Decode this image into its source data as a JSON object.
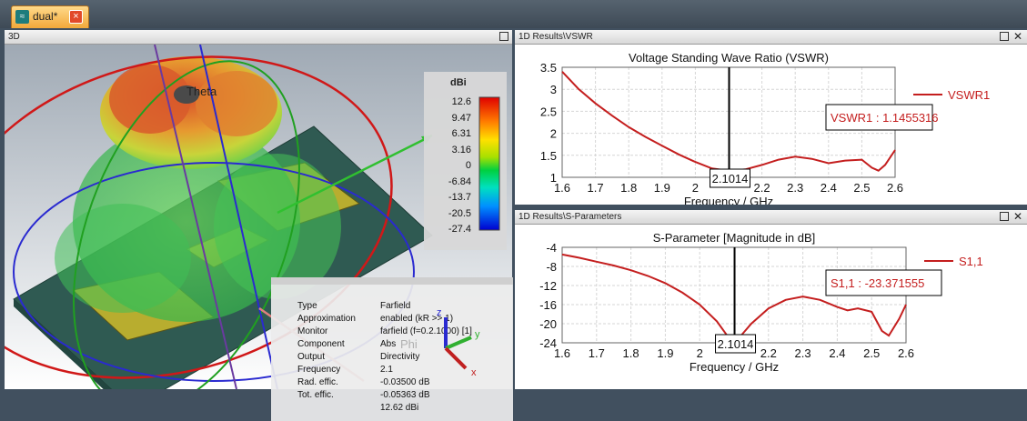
{
  "app": {
    "tab": {
      "title": "dual*",
      "icon": "waves-icon"
    }
  },
  "panel3d": {
    "title": "3D",
    "theta_label": "Theta",
    "phi_label": "Phi",
    "axes": {
      "x": "x",
      "y": "y",
      "z": "z"
    },
    "scale": {
      "unit": "dBi",
      "ticks": [
        "12.6",
        "9.47",
        "6.31",
        "3.16",
        "0",
        "-6.84",
        "-13.7",
        "-20.5",
        "-27.4"
      ]
    },
    "properties": [
      {
        "key": "Type",
        "value": "Farfield"
      },
      {
        "key": "Approximation",
        "value": "enabled (kR >> 1)"
      },
      {
        "key": "Monitor",
        "value": "farfield (f=0.2.1000) [1]"
      },
      {
        "key": "Component",
        "value": "Abs"
      },
      {
        "key": "Output",
        "value": "Directivity"
      },
      {
        "key": "Frequency",
        "value": "2.1"
      },
      {
        "key": "Rad. effic.",
        "value": "-0.03500 dB"
      },
      {
        "key": "Tot. effic.",
        "value": "-0.05363 dB"
      },
      {
        "key": "",
        "value": "12.62 dBi"
      }
    ]
  },
  "vswr_panel": {
    "title": "1D Results\\VSWR"
  },
  "sparam_panel": {
    "title": "1D Results\\S-Parameters"
  },
  "chart_data": [
    {
      "type": "line",
      "title": "Voltage Standing Wave Ratio (VSWR)",
      "xlabel": "Frequency / GHz",
      "ylabel": "",
      "xlim": [
        1.6,
        2.6
      ],
      "ylim": [
        1,
        3.5
      ],
      "x_ticks": [
        "1.6",
        "1.7",
        "1.8",
        "1.9",
        "2",
        "2.2",
        "2.3",
        "2.4",
        "2.5",
        "2.6"
      ],
      "y_ticks": [
        "3.5",
        "3",
        "2.5",
        "2",
        "1.5",
        "1"
      ],
      "grid": true,
      "legend": "top-right",
      "color": "#c41e1e",
      "series": [
        {
          "name": "VSWR1",
          "x": [
            1.6,
            1.65,
            1.7,
            1.75,
            1.8,
            1.85,
            1.9,
            1.95,
            2.0,
            2.05,
            2.1,
            2.15,
            2.2,
            2.25,
            2.3,
            2.35,
            2.4,
            2.45,
            2.5,
            2.53,
            2.55,
            2.57,
            2.6
          ],
          "values": [
            3.4,
            3.0,
            2.68,
            2.4,
            2.14,
            1.92,
            1.72,
            1.52,
            1.35,
            1.2,
            1.15,
            1.18,
            1.28,
            1.4,
            1.47,
            1.42,
            1.32,
            1.38,
            1.4,
            1.22,
            1.15,
            1.28,
            1.62
          ]
        }
      ],
      "marker": {
        "x": 2.1014,
        "label": "2.1014",
        "readout": "VSWR1 : 1.1455316"
      }
    },
    {
      "type": "line",
      "title": "S-Parameter [Magnitude in dB]",
      "xlabel": "Frequency / GHz",
      "ylabel": "",
      "xlim": [
        1.6,
        2.6
      ],
      "ylim": [
        -24,
        -4
      ],
      "x_ticks": [
        "1.6",
        "1.7",
        "1.8",
        "1.9",
        "2",
        "2.2",
        "2.3",
        "2.4",
        "2.5",
        "2.6"
      ],
      "y_ticks": [
        "-4",
        "-8",
        "-12",
        "-16",
        "-20",
        "-24"
      ],
      "grid": true,
      "legend": "top-right",
      "color": "#c41e1e",
      "series": [
        {
          "name": "S1,1",
          "x": [
            1.6,
            1.65,
            1.7,
            1.75,
            1.8,
            1.85,
            1.9,
            1.95,
            2.0,
            2.05,
            2.08,
            2.1,
            2.12,
            2.15,
            2.2,
            2.25,
            2.3,
            2.35,
            2.4,
            2.43,
            2.46,
            2.5,
            2.53,
            2.55,
            2.58,
            2.6
          ],
          "values": [
            -5.5,
            -6.2,
            -7.0,
            -7.8,
            -8.8,
            -10.0,
            -11.5,
            -13.5,
            -16.0,
            -19.5,
            -22.5,
            -23.3,
            -22.5,
            -20.0,
            -16.8,
            -15.0,
            -14.3,
            -15.0,
            -16.5,
            -17.2,
            -16.8,
            -17.5,
            -21.5,
            -22.5,
            -19.0,
            -16.0
          ]
        }
      ],
      "marker": {
        "x": 2.1014,
        "label": "2.1014",
        "readout": "S1,1 : -23.371555"
      }
    }
  ]
}
